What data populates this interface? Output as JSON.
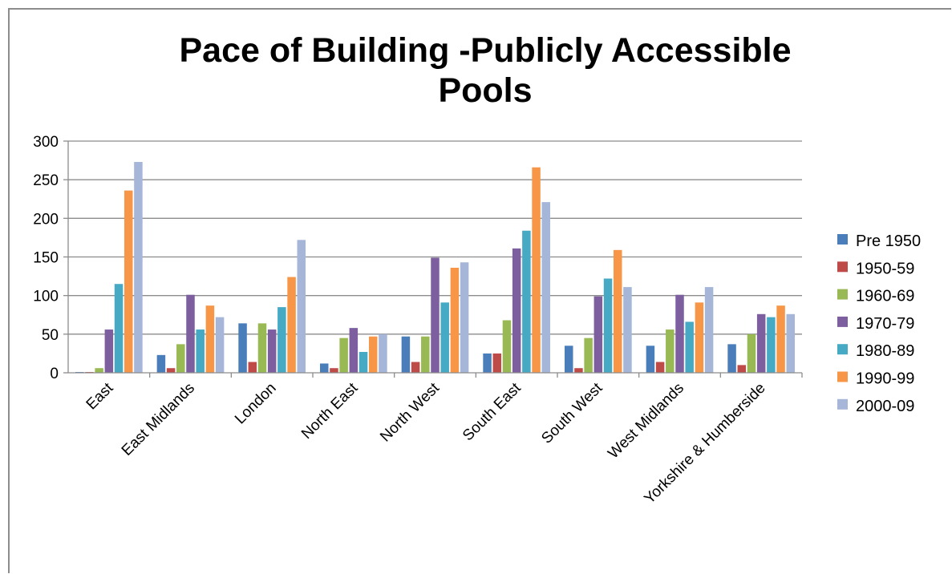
{
  "chart_data": {
    "type": "bar",
    "title": "Pace of Building -Publicly Accessible Pools",
    "title_lines": [
      "Pace of Building -Publicly Accessible",
      "Pools"
    ],
    "categories": [
      "East",
      "East Midlands",
      "London",
      "North East",
      "North West",
      "South East",
      "South West",
      "West Midlands",
      "Yorkshire & Humberside"
    ],
    "ylim": [
      0,
      300
    ],
    "yticks": [
      0,
      50,
      100,
      150,
      200,
      250,
      300
    ],
    "grid": true,
    "legend_position": "right",
    "series": [
      {
        "name": "Pre 1950",
        "color": "#4a7ebb",
        "values": [
          1,
          23,
          64,
          12,
          47,
          25,
          35,
          35,
          37
        ]
      },
      {
        "name": "1950-59",
        "color": "#be4b48",
        "values": [
          1,
          6,
          14,
          6,
          14,
          25,
          6,
          14,
          10
        ]
      },
      {
        "name": "1960-69",
        "color": "#98b954",
        "values": [
          6,
          37,
          64,
          45,
          47,
          68,
          45,
          56,
          50
        ]
      },
      {
        "name": "1970-79",
        "color": "#7d5fa0",
        "values": [
          56,
          101,
          56,
          58,
          149,
          161,
          99,
          101,
          76
        ]
      },
      {
        "name": "1980-89",
        "color": "#46aac5",
        "values": [
          115,
          56,
          85,
          27,
          91,
          184,
          122,
          66,
          72
        ]
      },
      {
        "name": "1990-99",
        "color": "#f79646",
        "values": [
          236,
          87,
          124,
          47,
          136,
          266,
          159,
          91,
          87
        ]
      },
      {
        "name": "2000-09",
        "color": "#a5b6d9",
        "values": [
          273,
          72,
          172,
          50,
          143,
          221,
          111,
          111,
          76
        ]
      }
    ]
  }
}
